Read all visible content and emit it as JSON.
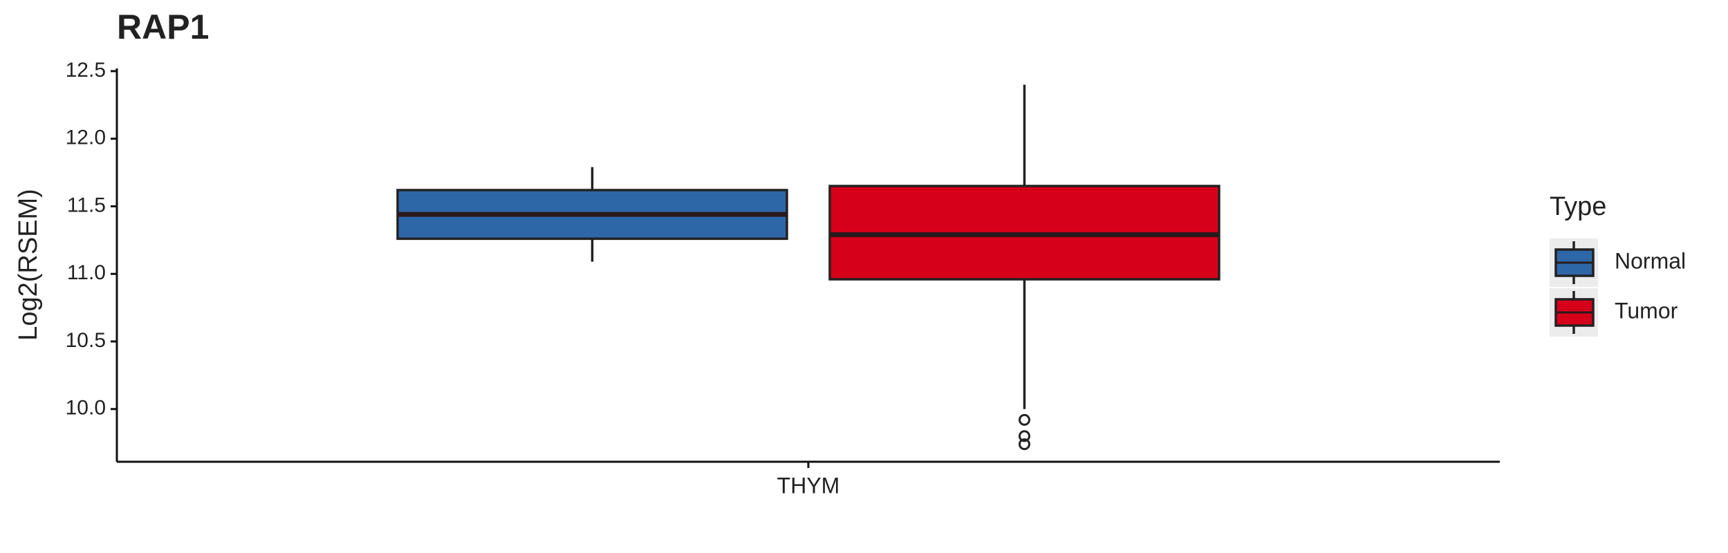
{
  "chart_data": {
    "type": "box",
    "title": "RAP1",
    "y_label": "Log2(RSEM)",
    "categories": [
      "THYM"
    ],
    "legend_title": "Type",
    "legend_position": "right",
    "ylim": [
      9.61,
      12.52
    ],
    "yticks": [
      {
        "value": 10,
        "label": "10.0"
      },
      10.5,
      {
        "value": 11,
        "label": "11.0"
      },
      11.5,
      {
        "value": 12,
        "label": "12.0"
      },
      12.5
    ],
    "series": [
      {
        "name": "Normal",
        "color": "#2e67a8",
        "boxes": [
          {
            "whislo": 11.09,
            "q1": 11.26,
            "median": 11.44,
            "q3": 11.62,
            "whishi": 11.79,
            "outliers": []
          }
        ]
      },
      {
        "name": "Tumor",
        "color": "#d7001a",
        "boxes": [
          {
            "whislo": 10.0,
            "q1": 10.96,
            "median": 11.29,
            "q3": 11.65,
            "whishi": 12.4,
            "outliers": [
              9.92,
              9.8,
              9.74
            ]
          }
        ]
      }
    ]
  }
}
